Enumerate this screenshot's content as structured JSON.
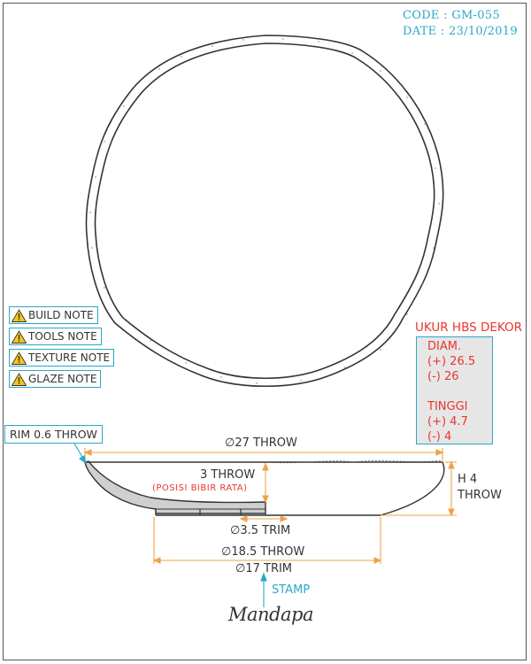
{
  "header": {
    "code": "CODE : GM-055",
    "date": "DATE : 23/10/2019"
  },
  "notes": [
    {
      "label": "BUILD NOTE",
      "icon": "warning-icon"
    },
    {
      "label": "TOOLS NOTE",
      "icon": "warning-icon"
    },
    {
      "label": "TEXTURE NOTE",
      "icon": "warning-icon"
    },
    {
      "label": "GLAZE NOTE",
      "icon": "warning-icon"
    }
  ],
  "hbs": {
    "title": "UKUR HBS DEKOR",
    "diam_label": "DIAM.",
    "diam_plus": "(+) 26.5",
    "diam_minus": "(-) 26",
    "tinggi_label": "TINGGI",
    "tinggi_plus": "(+) 4.7",
    "tinggi_minus": "(-) 4"
  },
  "dimensions": {
    "rim": "RIM 0.6 THROW",
    "diameter_top": "∅27 THROW",
    "height_inner": "3 THROW",
    "posisi": "(POSISI BIBIR RATA)",
    "height_outer_1": "H 4",
    "height_outer_2": "THROW",
    "trim_small": "∅3.5 TRIM",
    "base_throw": "∅18.5 THROW",
    "base_trim": "∅17 TRIM"
  },
  "stamp": {
    "label": "STAMP",
    "logo": "Mandapa"
  },
  "colors": {
    "accent_blue": "#2aa7c9",
    "dim_orange": "#f0a24a",
    "red": "#e8362f",
    "grey_fill": "#e6e6e6"
  }
}
